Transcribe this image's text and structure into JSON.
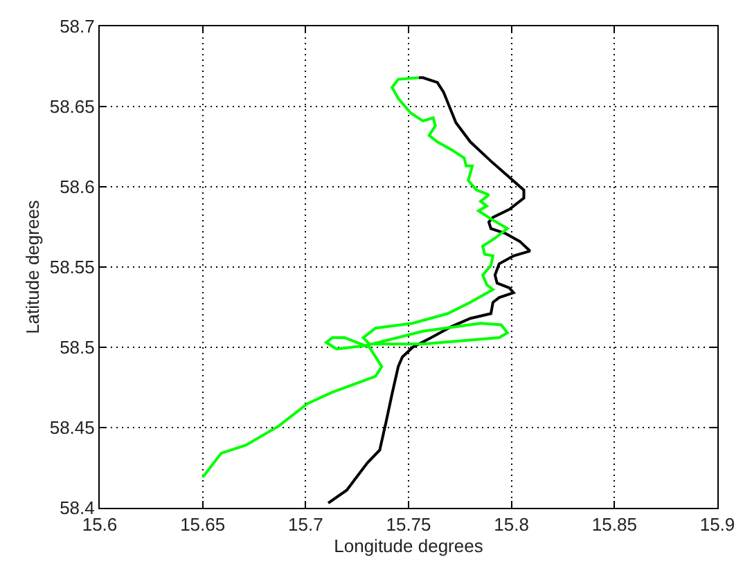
{
  "chart_data": {
    "type": "line",
    "xlabel": "Longitude degrees",
    "ylabel": "Latitude degrees",
    "xlim": [
      15.6,
      15.9
    ],
    "xticks": [
      15.6,
      15.65,
      15.7,
      15.75,
      15.8,
      15.85,
      15.9
    ],
    "ylim": [
      58.4,
      58.7
    ],
    "yticks": [
      58.4,
      58.45,
      58.5,
      58.55,
      58.6,
      58.65,
      58.7
    ],
    "grid": true,
    "marker": "none",
    "line_style": "solid",
    "series": [
      {
        "color": "#000000",
        "x": [
          15.711,
          15.72,
          15.73,
          15.736,
          15.739,
          15.742,
          15.745,
          15.747,
          15.752,
          15.761,
          15.771,
          15.78,
          15.79,
          15.791,
          15.794,
          15.801,
          15.799,
          15.793,
          15.792,
          15.794,
          15.801,
          15.809,
          15.804,
          15.797,
          15.79,
          15.789,
          15.791,
          15.799,
          15.806,
          15.806,
          15.798,
          15.79,
          15.78,
          15.773,
          15.767,
          15.764,
          15.757,
          15.755
        ],
        "values": [
          58.403,
          58.411,
          58.428,
          58.436,
          58.453,
          58.471,
          58.488,
          58.494,
          58.5,
          58.506,
          58.513,
          58.518,
          58.521,
          58.528,
          58.531,
          58.534,
          58.537,
          58.54,
          58.545,
          58.552,
          58.557,
          58.56,
          58.566,
          58.571,
          58.574,
          58.578,
          58.581,
          58.586,
          58.593,
          58.598,
          58.607,
          58.616,
          58.628,
          58.64,
          58.659,
          58.665,
          58.668,
          58.668
        ]
      },
      {
        "color": "#00ff00",
        "x": [
          15.755,
          15.745,
          15.742,
          15.745,
          15.751,
          15.757,
          15.762,
          15.763,
          15.76,
          15.764,
          15.771,
          15.777,
          15.778,
          15.781,
          15.779,
          15.783,
          15.789,
          15.785,
          15.788,
          15.784,
          15.79,
          15.798,
          15.792,
          15.786,
          15.787,
          15.791,
          15.79,
          15.786,
          15.788,
          15.791,
          15.78,
          15.769,
          15.752,
          15.734,
          15.728,
          15.731,
          15.757,
          15.794,
          15.798,
          15.795,
          15.785,
          15.757,
          15.729,
          15.715,
          15.71,
          15.713,
          15.719,
          15.731,
          15.737,
          15.734,
          15.713,
          15.701,
          15.687,
          15.671,
          15.659,
          15.65
        ],
        "values": [
          58.668,
          58.667,
          58.662,
          58.655,
          58.646,
          58.641,
          58.643,
          58.638,
          58.632,
          58.628,
          58.623,
          58.618,
          58.613,
          58.613,
          58.604,
          58.598,
          58.595,
          58.591,
          58.588,
          58.585,
          58.58,
          58.574,
          58.568,
          58.563,
          58.558,
          58.557,
          58.551,
          58.545,
          58.539,
          58.536,
          58.528,
          58.521,
          58.515,
          58.512,
          58.506,
          58.502,
          58.502,
          58.506,
          58.509,
          58.514,
          58.515,
          58.51,
          58.501,
          58.499,
          58.503,
          58.506,
          58.506,
          58.5,
          58.488,
          58.482,
          58.472,
          58.465,
          58.451,
          58.439,
          58.434,
          58.419
        ]
      }
    ]
  }
}
